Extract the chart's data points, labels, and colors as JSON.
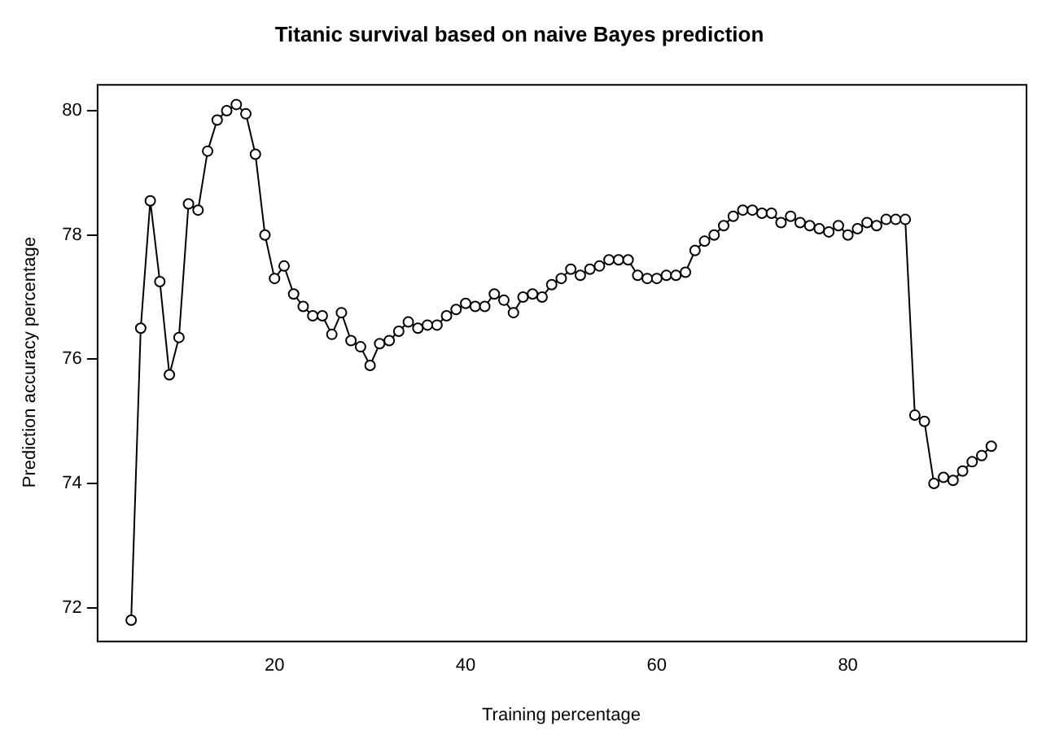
{
  "chart_data": {
    "type": "line",
    "title": "Titanic survival based on naive Bayes prediction",
    "xlabel": "Training percentage",
    "ylabel": "Prediction accuracy percentage",
    "x": [
      5,
      6,
      7,
      8,
      9,
      10,
      11,
      12,
      13,
      14,
      15,
      16,
      17,
      18,
      19,
      20,
      21,
      22,
      23,
      24,
      25,
      26,
      27,
      28,
      29,
      30,
      31,
      32,
      33,
      34,
      35,
      36,
      37,
      38,
      39,
      40,
      41,
      42,
      43,
      44,
      45,
      46,
      47,
      48,
      49,
      50,
      51,
      52,
      53,
      54,
      55,
      56,
      57,
      58,
      59,
      60,
      61,
      62,
      63,
      64,
      65,
      66,
      67,
      68,
      69,
      70,
      71,
      72,
      73,
      74,
      75,
      76,
      77,
      78,
      79,
      80,
      81,
      82,
      83,
      84,
      85,
      86,
      87,
      88,
      89,
      90,
      91,
      92,
      93,
      94,
      95
    ],
    "series": [
      {
        "color": "#000000",
        "values": [
          71.8,
          76.5,
          78.55,
          77.25,
          75.75,
          76.35,
          78.5,
          78.4,
          79.35,
          79.85,
          80.0,
          80.1,
          79.95,
          79.3,
          78.0,
          77.3,
          77.5,
          77.05,
          76.85,
          76.7,
          76.7,
          76.4,
          76.75,
          76.3,
          76.2,
          75.9,
          76.25,
          76.3,
          76.45,
          76.6,
          76.5,
          76.55,
          76.55,
          76.7,
          76.8,
          76.9,
          76.85,
          76.85,
          77.05,
          76.95,
          76.75,
          77.0,
          77.05,
          77.0,
          77.2,
          77.3,
          77.45,
          77.35,
          77.45,
          77.5,
          77.6,
          77.6,
          77.6,
          77.35,
          77.3,
          77.3,
          77.35,
          77.35,
          77.4,
          77.75,
          77.9,
          78.0,
          78.15,
          78.3,
          78.4,
          78.4,
          78.35,
          78.35,
          78.2,
          78.3,
          78.2,
          78.15,
          78.1,
          78.05,
          78.15,
          78.0,
          78.1,
          78.2,
          78.15,
          78.25,
          78.25,
          78.25,
          75.1,
          75.0,
          74.0,
          74.1,
          74.05,
          74.2,
          74.35,
          74.45,
          74.6
        ]
      }
    ],
    "xlim": [
      1.4,
      98.6
    ],
    "xticks": [
      20,
      40,
      60,
      80
    ],
    "ylim": [
      71.47,
      80.43
    ],
    "yticks": [
      72,
      74,
      76,
      78,
      80
    ],
    "marker": "circle",
    "grid": false,
    "legend": false
  }
}
